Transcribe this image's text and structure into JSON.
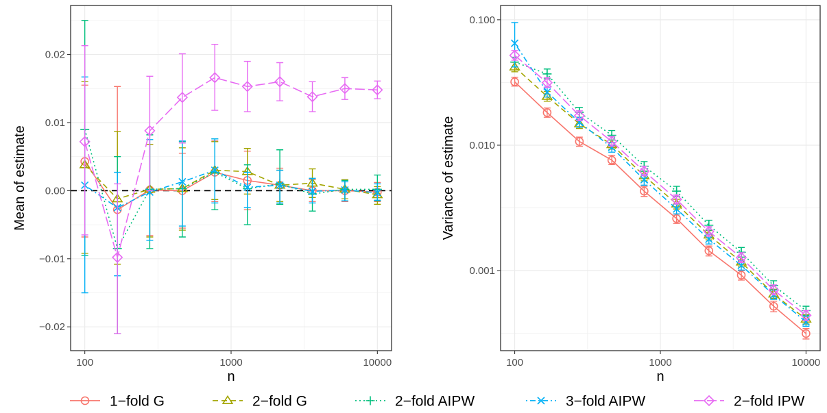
{
  "legend": {
    "position": "bottom",
    "entries": [
      {
        "label": "1−fold G",
        "color": "#F8766D",
        "marker": "circle",
        "dash": "solid"
      },
      {
        "label": "2−fold G",
        "color": "#A3A500",
        "marker": "triangle",
        "dash": "dashed"
      },
      {
        "label": "2−fold AIPW",
        "color": "#00BF7D",
        "marker": "plus",
        "dash": "dotted"
      },
      {
        "label": "3−fold AIPW",
        "color": "#00B0F6",
        "marker": "cross",
        "dash": "dotdash"
      },
      {
        "label": "2−fold IPW",
        "color": "#E76BF3",
        "marker": "diamond",
        "dash": "longdash"
      }
    ]
  },
  "chart_data": [
    {
      "type": "line",
      "xlabel": "n",
      "ylabel": "Mean of estimate",
      "xscale": "log10",
      "xlim": [
        80,
        12500
      ],
      "ylim": [
        -0.0235,
        0.0272
      ],
      "xticks": [
        100,
        1000,
        10000
      ],
      "xtick_labels": [
        "100",
        "1000",
        "10000"
      ],
      "yticks": [
        -0.02,
        -0.01,
        0.0,
        0.01,
        0.02
      ],
      "ytick_labels": [
        "−0.02",
        "−0.01",
        "0.00",
        "0.01",
        "0.02"
      ],
      "grid": true,
      "reference_line": {
        "y": 0,
        "style": "dashed",
        "color": "#000000"
      },
      "x": [
        100,
        167,
        278,
        464,
        774,
        1292,
        2154,
        3594,
        5995,
        10000
      ],
      "series": [
        {
          "name": "1−fold G",
          "values": [
            0.0043,
            -0.0028,
            0.0001,
            0.0,
            0.0027,
            0.0015,
            0.0008,
            0.0,
            0.0,
            -0.0002
          ],
          "lower": [
            -0.0068,
            -0.021,
            -0.0066,
            -0.0055,
            -0.0016,
            -0.0028,
            -0.002,
            -0.0016,
            -0.0016,
            -0.0016
          ],
          "upper": [
            0.0155,
            0.0153,
            0.0068,
            0.0055,
            0.0073,
            0.0058,
            0.0033,
            0.0016,
            0.0016,
            0.0012
          ]
        },
        {
          "name": "2−fold G",
          "values": [
            0.0038,
            -0.0012,
            0.0002,
            0.0003,
            0.003,
            0.0028,
            0.0008,
            0.0011,
            0.0002,
            -0.0006
          ],
          "lower": [
            -0.0092,
            -0.0108,
            -0.0068,
            -0.0058,
            -0.0013,
            -0.0005,
            -0.0016,
            -0.001,
            -0.0012,
            -0.002
          ],
          "upper": [
            0.016,
            0.0087,
            0.0068,
            0.0063,
            0.0072,
            0.0062,
            0.003,
            0.0032,
            0.0016,
            0.0006
          ]
        },
        {
          "name": "2−fold AIPW",
          "values": [
            0.009,
            -0.0085,
            0.0002,
            0.0003,
            0.0027,
            0.0003,
            0.001,
            -0.0005,
            0.0002,
            0.0002
          ],
          "lower": [
            -0.0095,
            -0.021,
            -0.0085,
            -0.0068,
            -0.0028,
            -0.005,
            -0.002,
            -0.003,
            -0.0015,
            -0.0015
          ],
          "upper": [
            0.025,
            0.005,
            0.0082,
            0.0072,
            0.0076,
            0.0038,
            0.006,
            0.0018,
            0.0015,
            0.0023
          ]
        },
        {
          "name": "3−fold AIPW",
          "values": [
            0.0008,
            -0.0025,
            -0.0002,
            0.0013,
            0.003,
            0.0005,
            0.0008,
            -0.0001,
            0.0001,
            -0.0003
          ],
          "lower": [
            -0.015,
            -0.0125,
            -0.0073,
            -0.0052,
            -0.0018,
            -0.0025,
            -0.0018,
            -0.0018,
            -0.0015,
            -0.0014
          ],
          "upper": [
            0.0167,
            0.0027,
            0.0075,
            0.0073,
            0.0076,
            0.0027,
            0.003,
            0.0018,
            0.0013,
            0.001
          ]
        },
        {
          "name": "2−fold IPW",
          "values": [
            0.0072,
            -0.0098,
            0.0088,
            0.0137,
            0.0166,
            0.0153,
            0.016,
            0.0138,
            0.015,
            0.0148
          ],
          "lower": [
            -0.0065,
            -0.021,
            0.0,
            0.007,
            0.0118,
            0.0116,
            0.0132,
            0.0116,
            0.0134,
            0.0135
          ],
          "upper": [
            0.0213,
            0.001,
            0.0168,
            0.0201,
            0.0215,
            0.019,
            0.0188,
            0.016,
            0.0166,
            0.0161
          ]
        }
      ]
    },
    {
      "type": "line",
      "xlabel": "n",
      "ylabel": "Variance of estimate",
      "xscale": "log10",
      "yscale": "log10",
      "xlim": [
        80,
        12500
      ],
      "ylim": [
        0.00023,
        0.13
      ],
      "xticks": [
        100,
        1000,
        10000
      ],
      "xtick_labels": [
        "100",
        "1000",
        "10000"
      ],
      "yticks": [
        0.001,
        0.01,
        0.1
      ],
      "ytick_labels": [
        "0.001",
        "0.010",
        "0.100"
      ],
      "grid": true,
      "x": [
        100,
        167,
        278,
        464,
        774,
        1292,
        2154,
        3594,
        5995,
        10000
      ],
      "series": [
        {
          "name": "1−fold G",
          "values": [
            0.032,
            0.0182,
            0.0107,
            0.0076,
            0.0043,
            0.0026,
            0.00144,
            0.00092,
            0.00052,
            0.000315
          ],
          "lower": [
            0.0296,
            0.0167,
            0.0098,
            0.007,
            0.0039,
            0.00238,
            0.00131,
            0.00084,
            0.00047,
            0.000285
          ],
          "upper": [
            0.0348,
            0.0198,
            0.0116,
            0.0083,
            0.0047,
            0.00283,
            0.00157,
            0.001,
            0.00057,
            0.000345
          ]
        },
        {
          "name": "2−fold G",
          "values": [
            0.042,
            0.0245,
            0.0148,
            0.0101,
            0.0057,
            0.0034,
            0.00192,
            0.00117,
            0.00065,
            0.00041
          ],
          "lower": [
            0.0385,
            0.0224,
            0.0136,
            0.0093,
            0.0052,
            0.0031,
            0.00176,
            0.00107,
            0.0006,
            0.000375
          ],
          "upper": [
            0.0458,
            0.0268,
            0.0161,
            0.011,
            0.0062,
            0.0037,
            0.00209,
            0.00128,
            0.00071,
            0.000445
          ]
        },
        {
          "name": "2−fold AIPW",
          "values": [
            0.046,
            0.037,
            0.0183,
            0.012,
            0.0068,
            0.0043,
            0.0023,
            0.0014,
            0.00076,
            0.00048
          ],
          "lower": [
            0.0421,
            0.0338,
            0.0167,
            0.011,
            0.0062,
            0.0039,
            0.0021,
            0.00128,
            0.0007,
            0.00044
          ],
          "upper": [
            0.0503,
            0.0405,
            0.02,
            0.0131,
            0.0074,
            0.0047,
            0.00252,
            0.00153,
            0.00083,
            0.00052
          ]
        },
        {
          "name": "3−fold AIPW",
          "values": [
            0.065,
            0.0265,
            0.0152,
            0.0096,
            0.0053,
            0.0031,
            0.00178,
            0.0011,
            0.00064,
            0.00039
          ],
          "lower": [
            0.042,
            0.0242,
            0.0139,
            0.0088,
            0.0048,
            0.00283,
            0.00163,
            0.00101,
            0.00059,
            0.00036
          ],
          "upper": [
            0.095,
            0.029,
            0.0166,
            0.0105,
            0.0058,
            0.00339,
            0.00195,
            0.0012,
            0.0007,
            0.00043
          ]
        },
        {
          "name": "2−fold IPW",
          "values": [
            0.052,
            0.0315,
            0.0172,
            0.0107,
            0.0062,
            0.0037,
            0.00205,
            0.00127,
            0.0007,
            0.00044
          ],
          "lower": [
            0.0476,
            0.0288,
            0.0157,
            0.0098,
            0.0057,
            0.0034,
            0.00188,
            0.00116,
            0.00064,
            0.0004
          ],
          "upper": [
            0.0568,
            0.0345,
            0.0188,
            0.0117,
            0.0068,
            0.004,
            0.00224,
            0.00139,
            0.00077,
            0.00048
          ]
        }
      ]
    }
  ]
}
